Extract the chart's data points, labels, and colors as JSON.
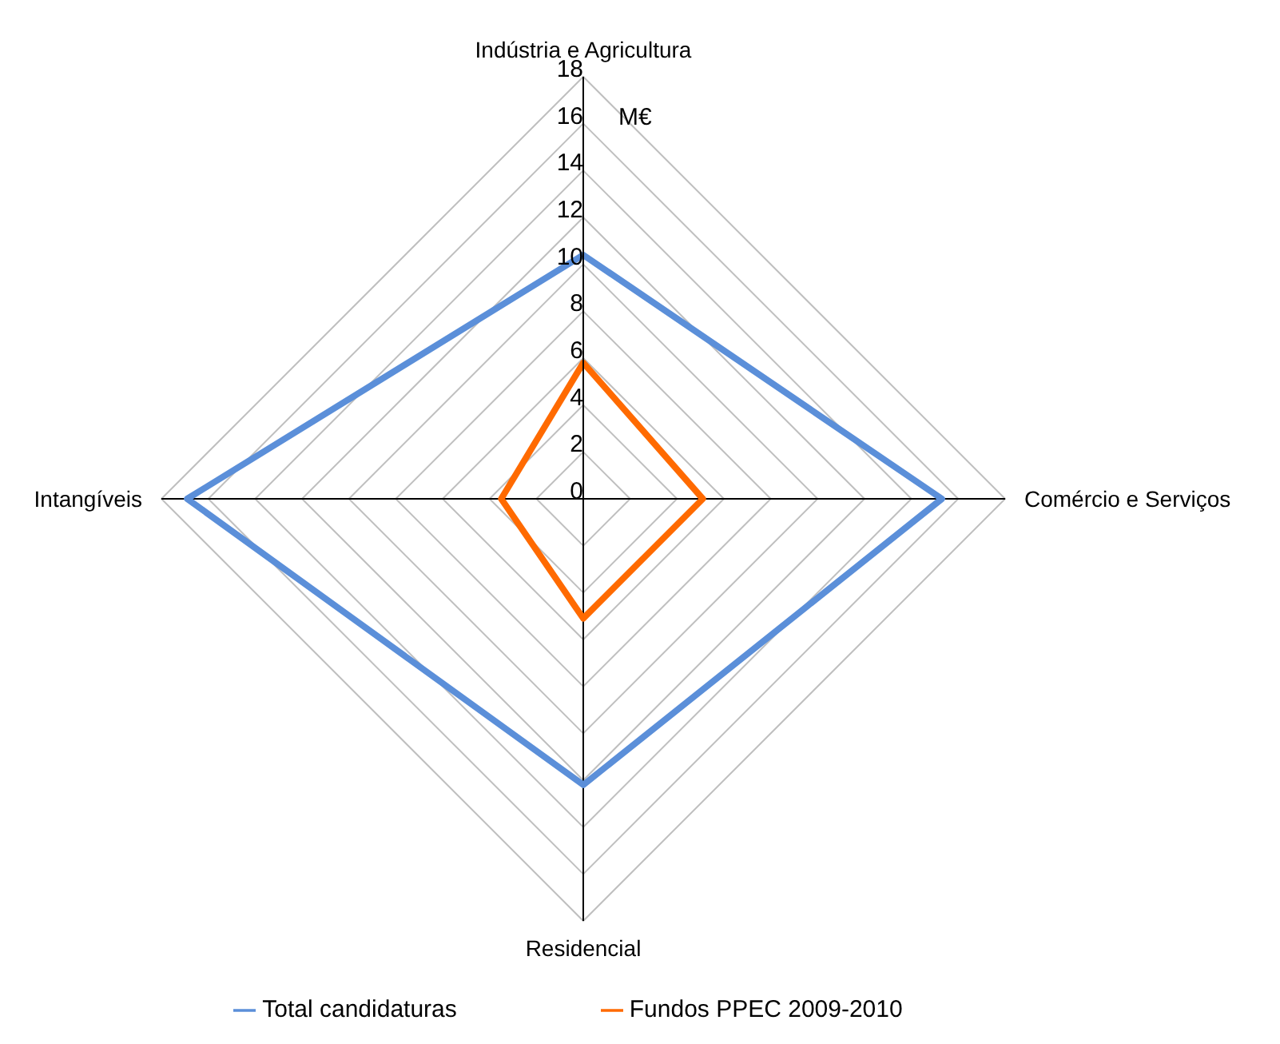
{
  "chart_data": {
    "type": "radar",
    "categories": [
      "Indústria e Agricultura",
      "Comércio e Serviços",
      "Residencial",
      "Intangíveis"
    ],
    "series": [
      {
        "name": "Total candidaturas",
        "color": "#5b8fd9",
        "values": [
          10.4,
          15.3,
          12.2,
          16.9
        ]
      },
      {
        "name": "Fundos PPEC 2009-2010",
        "color": "#ff6a00",
        "values": [
          5.8,
          5.1,
          5.1,
          3.5
        ]
      }
    ],
    "ylim": [
      0,
      18
    ],
    "yticks": [
      0,
      2,
      4,
      6,
      8,
      10,
      12,
      14,
      16,
      18
    ],
    "annotations": [
      "M€"
    ],
    "grid": true,
    "legend": "bottom"
  }
}
